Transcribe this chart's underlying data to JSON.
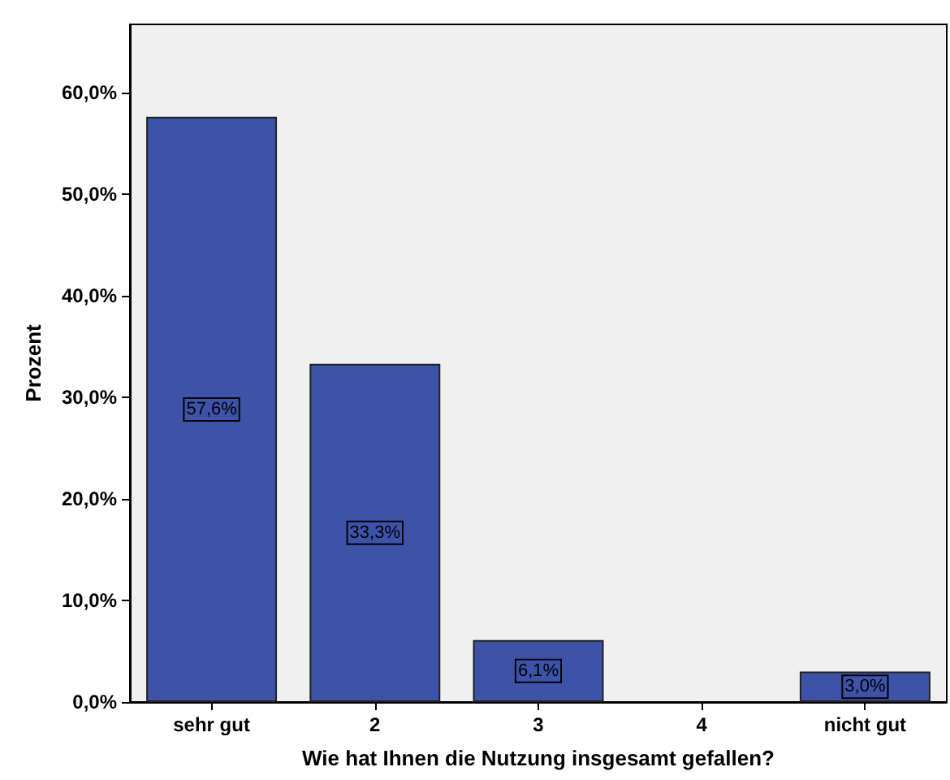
{
  "chart_data": {
    "type": "bar",
    "xlabel": "Wie hat Ihnen die Nutzung insgesamt gefallen?",
    "ylabel": "Prozent",
    "categories": [
      "sehr gut",
      "2",
      "3",
      "4",
      "nicht gut"
    ],
    "values": [
      57.6,
      33.3,
      6.1,
      0,
      3.0
    ],
    "value_labels": [
      "57,6%",
      "33,3%",
      "6,1%",
      null,
      "3,0%"
    ],
    "color": "#3c53a8",
    "ylim": [
      0,
      66.7
    ],
    "yticks": [
      {
        "value": 0,
        "label": "0,0%"
      },
      {
        "value": 10,
        "label": "10,0%"
      },
      {
        "value": 20,
        "label": "20,0%"
      },
      {
        "value": 30,
        "label": "30,0%"
      },
      {
        "value": 40,
        "label": "40,0%"
      },
      {
        "value": 50,
        "label": "50,0%"
      },
      {
        "value": 60,
        "label": "60,0%"
      }
    ],
    "grid": false
  }
}
